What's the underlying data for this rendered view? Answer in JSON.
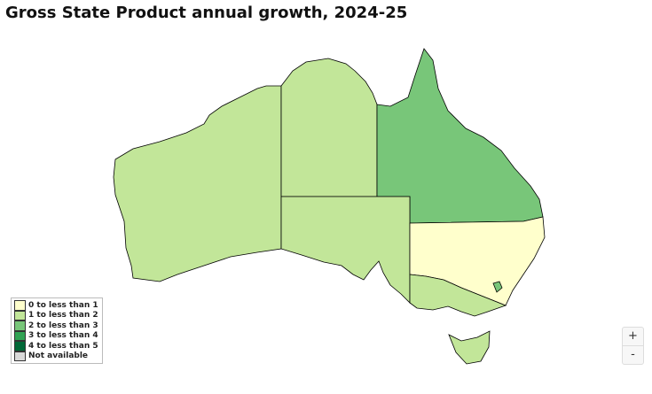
{
  "title": "Gross State Product annual growth, 2024-25",
  "legend": [
    {
      "label": "0 to less than 1",
      "color": "#ffffcc"
    },
    {
      "label": "1 to less than 2",
      "color": "#c2e699"
    },
    {
      "label": "2 to less than 3",
      "color": "#78c679"
    },
    {
      "label": "3 to less than 4",
      "color": "#31a354"
    },
    {
      "label": "4 to less than 5",
      "color": "#006837"
    },
    {
      "label": "Not available",
      "color": "#d9d9d9"
    }
  ],
  "regions": [
    {
      "id": "wa",
      "category": "1 to less than 2"
    },
    {
      "id": "nt",
      "category": "1 to less than 2"
    },
    {
      "id": "qld",
      "category": "2 to less than 3"
    },
    {
      "id": "sa",
      "category": "1 to less than 2"
    },
    {
      "id": "nsw",
      "category": "0 to less than 1"
    },
    {
      "id": "vic",
      "category": "1 to less than 2"
    },
    {
      "id": "tas",
      "category": "1 to less than 2"
    },
    {
      "id": "act",
      "category": "2 to less than 3"
    }
  ],
  "zoom": {
    "in": "+",
    "out": "-"
  }
}
